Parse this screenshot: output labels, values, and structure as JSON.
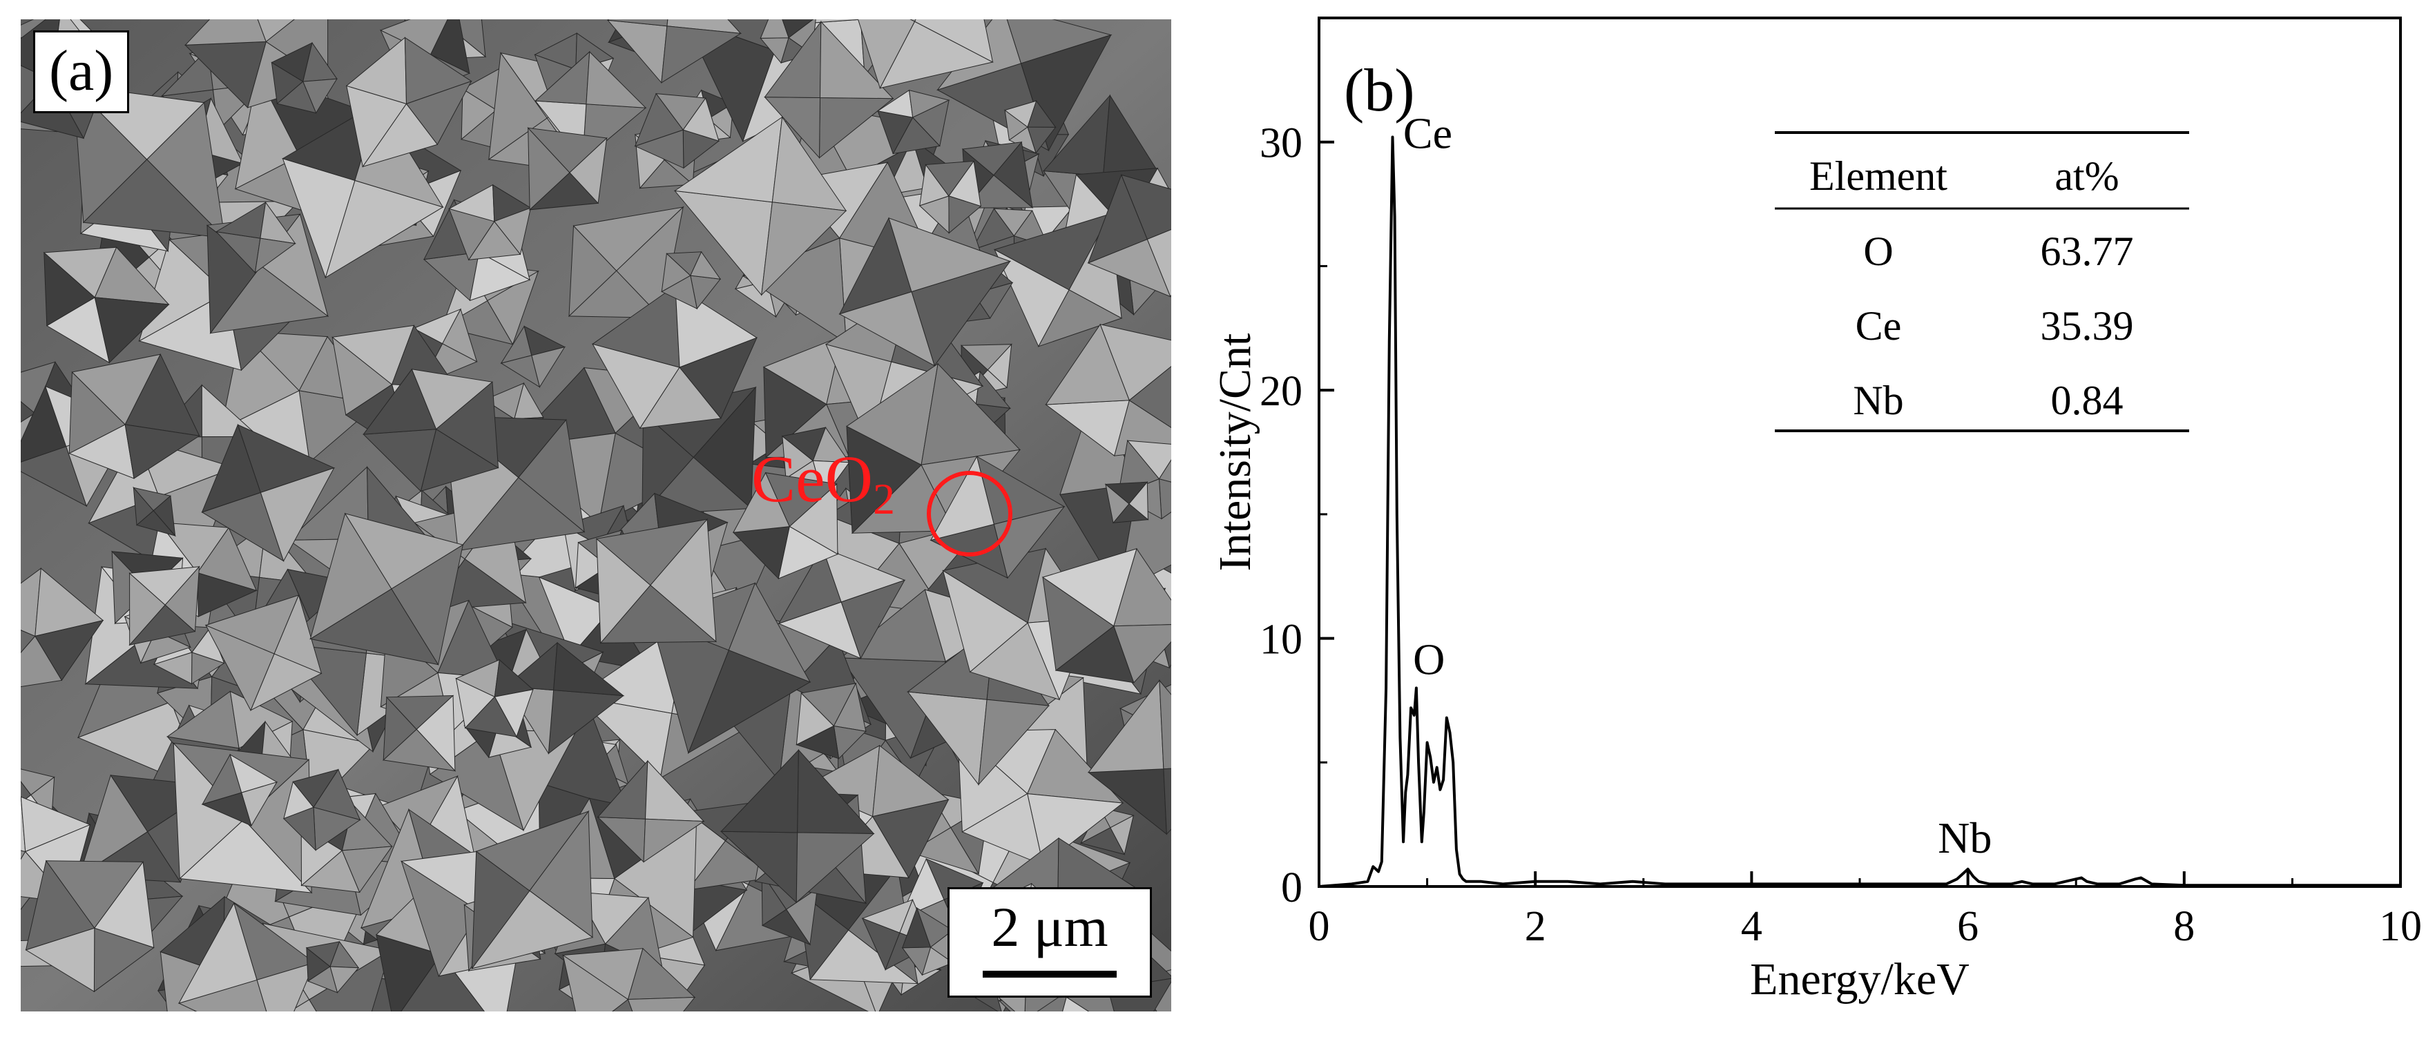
{
  "panel_a": {
    "label": "(a)",
    "annotation": {
      "text": "CeO",
      "subscript": "2",
      "color": "#ff1a1a"
    },
    "scale_bar": "2 μm"
  },
  "panel_b": {
    "label": "(b)",
    "inset_table": {
      "headers": [
        "Element",
        "at%"
      ],
      "rows": [
        [
          "O",
          "63.77"
        ],
        [
          "Ce",
          "35.39"
        ],
        [
          "Nb",
          "0.84"
        ]
      ]
    }
  },
  "chart_data": {
    "type": "line",
    "title": "",
    "xlabel": "Energy/keV",
    "ylabel": "Intensity/Cnt",
    "xlim": [
      0,
      10
    ],
    "ylim": [
      0,
      35
    ],
    "xticks": [
      0,
      2,
      4,
      6,
      8,
      10
    ],
    "yticks": [
      0,
      10,
      20,
      30
    ],
    "grid": false,
    "series": [
      {
        "color": "#000000",
        "x": [
          0,
          0.3,
          0.45,
          0.5,
          0.55,
          0.58,
          0.62,
          0.65,
          0.68,
          0.7,
          0.72,
          0.75,
          0.78,
          0.8,
          0.82,
          0.85,
          0.88,
          0.9,
          0.92,
          0.95,
          0.97,
          1.0,
          1.03,
          1.06,
          1.09,
          1.12,
          1.15,
          1.18,
          1.21,
          1.24,
          1.27,
          1.3,
          1.33,
          1.36,
          1.4,
          1.5,
          1.7,
          2.0,
          2.3,
          2.6,
          2.9,
          3.2,
          3.5,
          3.8,
          4.1,
          4.4,
          4.7,
          5.0,
          5.3,
          5.6,
          5.8,
          5.9,
          5.95,
          6.0,
          6.05,
          6.1,
          6.2,
          6.4,
          6.5,
          6.6,
          6.8,
          7.0,
          7.05,
          7.1,
          7.2,
          7.4,
          7.55,
          7.6,
          7.7,
          8.0,
          8.5,
          9.0,
          9.5,
          10.0
        ],
        "y": [
          0.0,
          0.1,
          0.2,
          0.8,
          0.6,
          1.0,
          8.0,
          22.0,
          30.2,
          27.0,
          15.0,
          6.0,
          1.8,
          3.8,
          4.5,
          7.2,
          6.9,
          8.0,
          5.0,
          1.8,
          3.0,
          5.8,
          5.2,
          4.2,
          4.8,
          3.9,
          4.3,
          6.8,
          6.2,
          5.0,
          1.5,
          0.5,
          0.3,
          0.2,
          0.2,
          0.2,
          0.1,
          0.2,
          0.2,
          0.1,
          0.2,
          0.1,
          0.1,
          0.1,
          0.1,
          0.1,
          0.1,
          0.1,
          0.1,
          0.1,
          0.1,
          0.3,
          0.5,
          0.7,
          0.4,
          0.2,
          0.1,
          0.1,
          0.2,
          0.1,
          0.1,
          0.3,
          0.35,
          0.2,
          0.1,
          0.1,
          0.3,
          0.35,
          0.1,
          0.05,
          0.05,
          0.05,
          0.05,
          0.05
        ]
      }
    ],
    "annotations": [
      {
        "text": "Ce",
        "x": 0.74,
        "y": 30.2
      },
      {
        "text": "O",
        "x": 0.92,
        "y": 8.0
      },
      {
        "text": "Nb",
        "x": 5.85,
        "y": 0.7
      }
    ]
  }
}
